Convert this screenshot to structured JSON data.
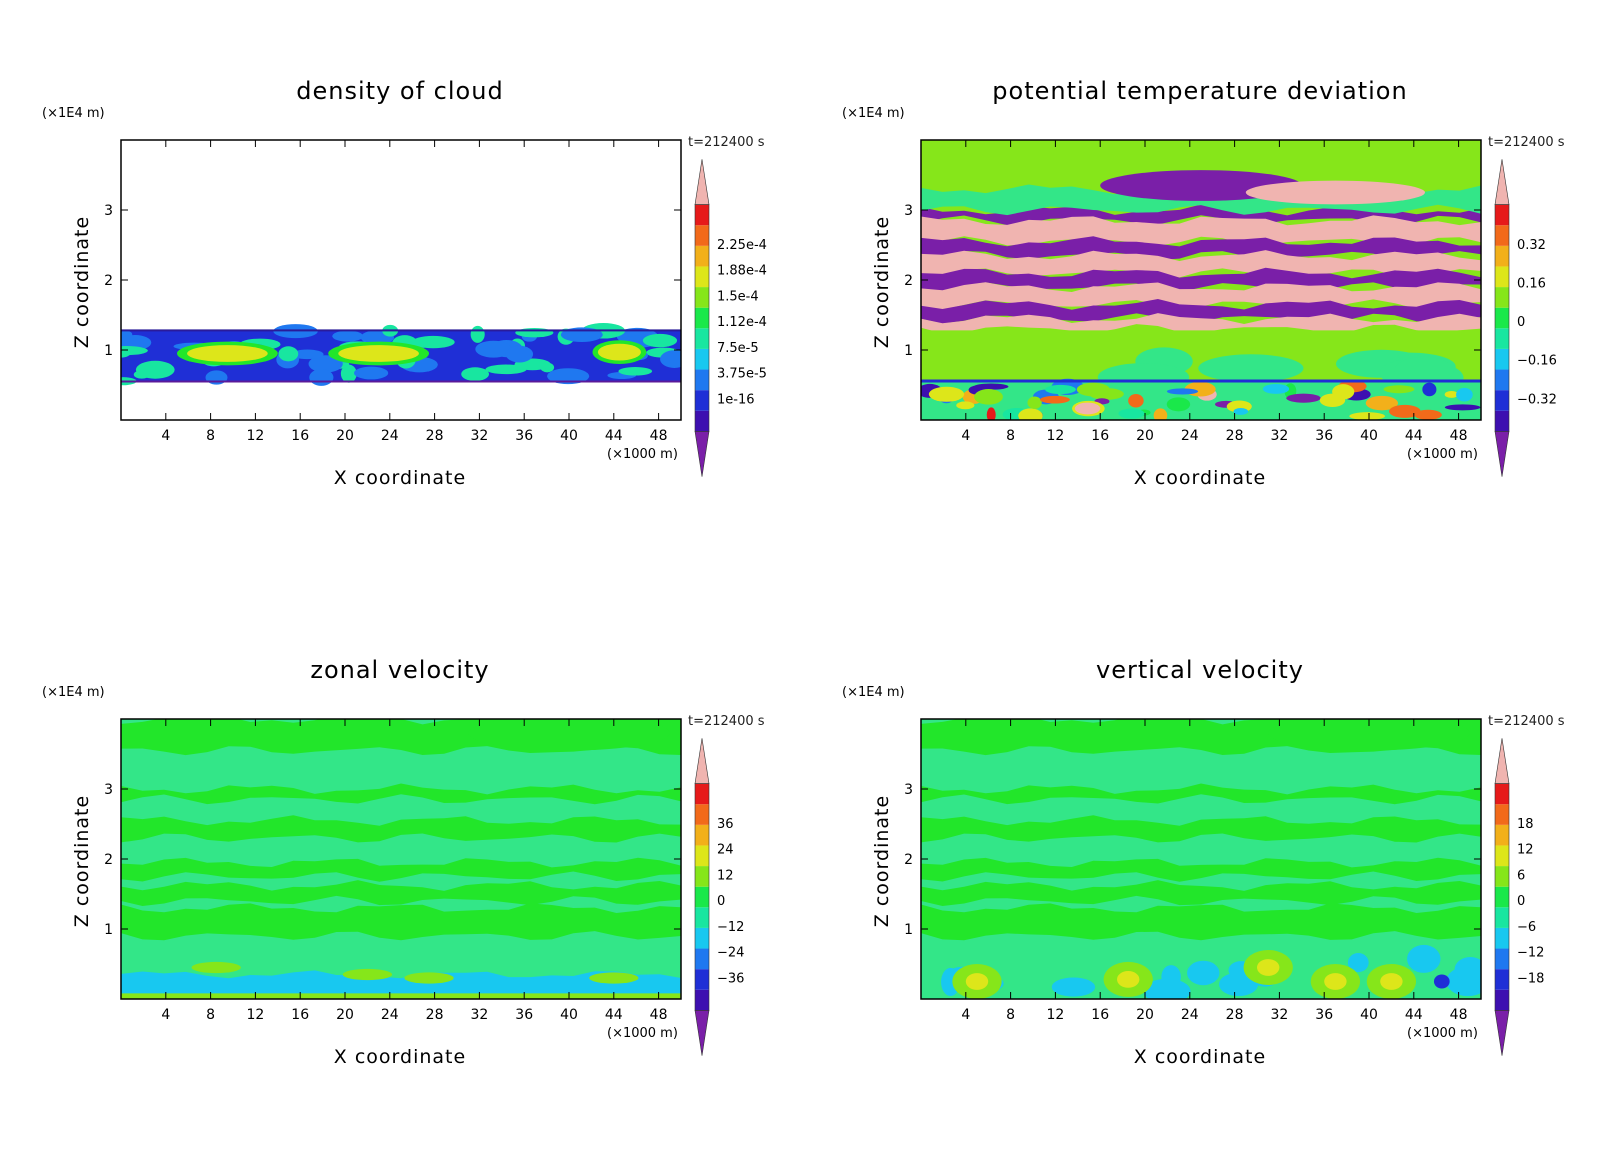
{
  "chart_data": [
    {
      "type": "heatmap",
      "title": "density of cloud",
      "xlabel": "X coordinate",
      "ylabel": "Z coordinate",
      "x_units": "(×1000 m)",
      "y_units": "(×1E4 m)",
      "time_label": "t=212400 s",
      "xlim": [
        0,
        50
      ],
      "ylim": [
        0,
        4
      ],
      "x_ticks": [
        4,
        8,
        12,
        16,
        20,
        24,
        28,
        32,
        36,
        40,
        44,
        48
      ],
      "y_ticks": [
        1,
        2,
        3
      ],
      "colorbar_labels": [
        "2.25e-4",
        "1.88e-4",
        "1.5e-4",
        "1.12e-4",
        "7.5e-5",
        "3.75e-5",
        "1e-16"
      ],
      "cloud_layer_z": [
        0.55,
        1.28
      ],
      "background": "#f2f2f2"
    },
    {
      "type": "heatmap",
      "title": "potential temperature deviation",
      "xlabel": "X coordinate",
      "ylabel": "Z coordinate",
      "x_units": "(×1000 m)",
      "y_units": "(×1E4 m)",
      "time_label": "t=212400 s",
      "xlim": [
        0,
        50
      ],
      "ylim": [
        0,
        4
      ],
      "x_ticks": [
        4,
        8,
        12,
        16,
        20,
        24,
        28,
        32,
        36,
        40,
        44,
        48
      ],
      "y_ticks": [
        1,
        2,
        3
      ],
      "colorbar_labels": [
        "0.32",
        "0.16",
        "0",
        "−0.16",
        "−0.32"
      ]
    },
    {
      "type": "heatmap",
      "title": "zonal velocity",
      "xlabel": "X coordinate",
      "ylabel": "Z coordinate",
      "x_units": "(×1000 m)",
      "y_units": "(×1E4 m)",
      "time_label": "t=212400 s",
      "xlim": [
        0,
        50
      ],
      "ylim": [
        0,
        4
      ],
      "x_ticks": [
        4,
        8,
        12,
        16,
        20,
        24,
        28,
        32,
        36,
        40,
        44,
        48
      ],
      "y_ticks": [
        1,
        2,
        3
      ],
      "colorbar_labels": [
        "36",
        "24",
        "12",
        "0",
        "−12",
        "−24",
        "−36"
      ]
    },
    {
      "type": "heatmap",
      "title": "vertical velocity",
      "xlabel": "X coordinate",
      "ylabel": "Z coordinate",
      "x_units": "(×1000 m)",
      "y_units": "(×1E4 m)",
      "time_label": "t=212400 s",
      "xlim": [
        0,
        50
      ],
      "ylim": [
        0,
        4
      ],
      "x_ticks": [
        4,
        8,
        12,
        16,
        20,
        24,
        28,
        32,
        36,
        40,
        44,
        48
      ],
      "y_ticks": [
        1,
        2,
        3
      ],
      "colorbar_labels": [
        "18",
        "12",
        "6",
        "0",
        "−6",
        "−12",
        "−18"
      ]
    }
  ],
  "colors": {
    "colorbar": [
      "#7a1fa8",
      "#3d0fb0",
      "#1f2fd6",
      "#1f78f0",
      "#18c8f0",
      "#18e6a0",
      "#1ae84a",
      "#86e61a",
      "#dde61a",
      "#f2b01a",
      "#f26a1a",
      "#e61a1a",
      "#f0b4b0"
    ],
    "field_light": "#33e688",
    "field_green": "#22e62a"
  }
}
